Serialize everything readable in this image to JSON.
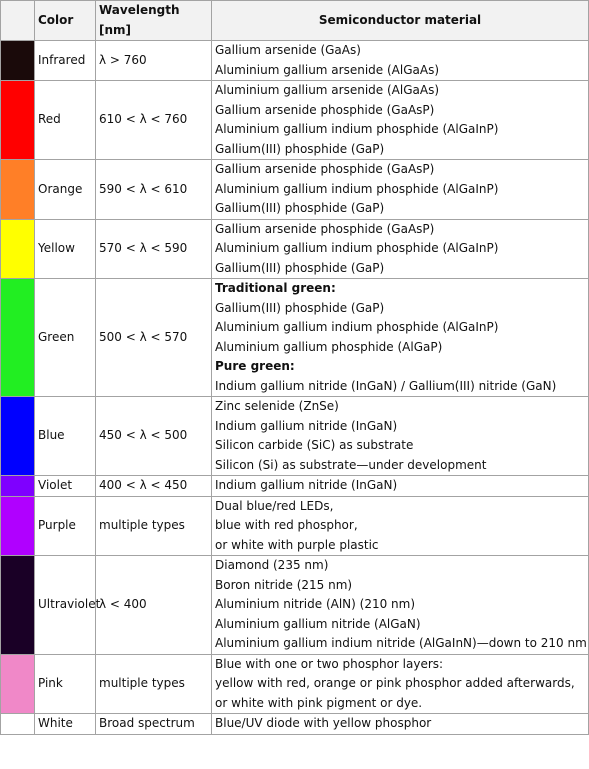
{
  "headers": {
    "swatch": "",
    "color": "Color",
    "wavelength": "Wavelength [nm]",
    "material": "Semiconductor material"
  },
  "rows": [
    {
      "color": "Infrared",
      "swatch": "#1a0a0a",
      "wavelength": "λ > 760",
      "materials": [
        {
          "text": "Gallium arsenide (GaAs)",
          "bold": false
        },
        {
          "text": "Aluminium gallium arsenide (AlGaAs)",
          "bold": false
        }
      ]
    },
    {
      "color": "Red",
      "swatch": "#ff0000",
      "wavelength": "610 < λ < 760",
      "materials": [
        {
          "text": "Aluminium gallium arsenide (AlGaAs)",
          "bold": false
        },
        {
          "text": "Gallium arsenide phosphide (GaAsP)",
          "bold": false
        },
        {
          "text": "Aluminium gallium indium phosphide (AlGaInP)",
          "bold": false
        },
        {
          "text": "Gallium(III) phosphide (GaP)",
          "bold": false
        }
      ]
    },
    {
      "color": "Orange",
      "swatch": "#ff7f27",
      "wavelength": "590 < λ < 610",
      "materials": [
        {
          "text": "Gallium arsenide phosphide (GaAsP)",
          "bold": false
        },
        {
          "text": "Aluminium gallium indium phosphide (AlGaInP)",
          "bold": false
        },
        {
          "text": "Gallium(III) phosphide (GaP)",
          "bold": false
        }
      ]
    },
    {
      "color": "Yellow",
      "swatch": "#ffff00",
      "wavelength": "570 < λ < 590",
      "materials": [
        {
          "text": "Gallium arsenide phosphide (GaAsP)",
          "bold": false
        },
        {
          "text": "Aluminium gallium indium phosphide (AlGaInP)",
          "bold": false
        },
        {
          "text": "Gallium(III) phosphide (GaP)",
          "bold": false
        }
      ]
    },
    {
      "color": "Green",
      "swatch": "#22ee22",
      "wavelength": "500 < λ < 570",
      "materials": [
        {
          "text": "Traditional green:",
          "bold": true
        },
        {
          "text": "Gallium(III) phosphide (GaP)",
          "bold": false
        },
        {
          "text": "Aluminium gallium indium phosphide (AlGaInP)",
          "bold": false
        },
        {
          "text": "Aluminium gallium phosphide (AlGaP)",
          "bold": false
        },
        {
          "text": "Pure green:",
          "bold": true
        },
        {
          "text": "Indium gallium nitride (InGaN) / Gallium(III) nitride (GaN)",
          "bold": false
        }
      ]
    },
    {
      "color": "Blue",
      "swatch": "#0000ff",
      "wavelength": "450 < λ < 500",
      "materials": [
        {
          "text": "Zinc selenide (ZnSe)",
          "bold": false
        },
        {
          "text": "Indium gallium nitride (InGaN)",
          "bold": false
        },
        {
          "text": "Silicon carbide (SiC) as substrate",
          "bold": false
        },
        {
          "text": "Silicon (Si) as substrate—under development",
          "bold": false
        }
      ]
    },
    {
      "color": "Violet",
      "swatch": "#7f00ff",
      "wavelength": "400 < λ < 450",
      "materials": [
        {
          "text": "Indium gallium nitride (InGaN)",
          "bold": false
        }
      ]
    },
    {
      "color": "Purple",
      "swatch": "#b000ff",
      "wavelength": "multiple types",
      "materials": [
        {
          "text": "Dual blue/red LEDs,",
          "bold": false
        },
        {
          "text": "blue with red phosphor,",
          "bold": false
        },
        {
          "text": "or white with purple plastic",
          "bold": false
        }
      ]
    },
    {
      "color": "Ultraviolet",
      "swatch": "#1a0026",
      "wavelength": "λ < 400",
      "materials": [
        {
          "text": "Diamond (235 nm)",
          "bold": false
        },
        {
          "text": "Boron nitride (215 nm)",
          "bold": false
        },
        {
          "text": "Aluminium nitride (AlN) (210 nm)",
          "bold": false
        },
        {
          "text": "Aluminium gallium nitride (AlGaN)",
          "bold": false
        },
        {
          "text": "Aluminium gallium indium nitride (AlGaInN)—down to 210 nm",
          "bold": false
        }
      ]
    },
    {
      "color": "Pink",
      "swatch": "#f088c8",
      "wavelength": "multiple types",
      "materials": [
        {
          "text": "Blue with one or two phosphor layers:",
          "bold": false
        },
        {
          "text": "yellow with red, orange or pink phosphor added afterwards,",
          "bold": false
        },
        {
          "text": "or white with pink pigment or dye.",
          "bold": false
        }
      ]
    },
    {
      "color": "White",
      "swatch": "#ffffff",
      "wavelength": "Broad spectrum",
      "materials": [
        {
          "text": "Blue/UV diode with yellow phosphor",
          "bold": false
        }
      ]
    }
  ]
}
